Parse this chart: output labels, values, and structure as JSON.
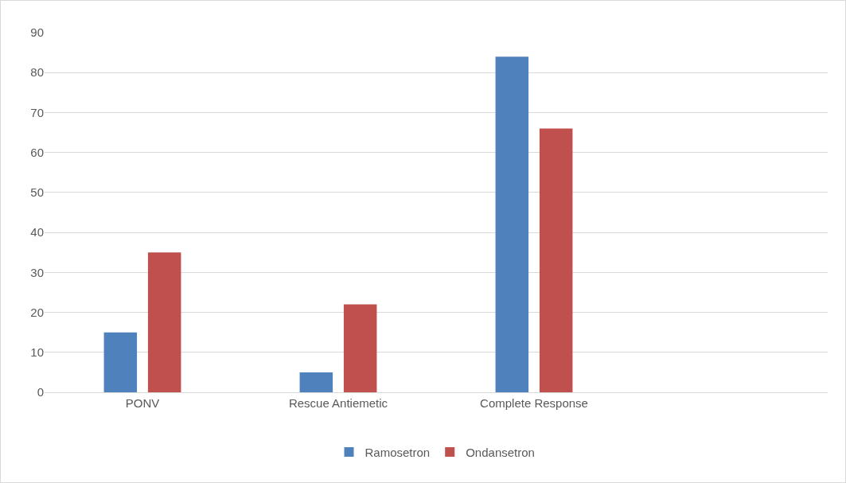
{
  "chart_data": {
    "type": "bar",
    "categories": [
      "PONV",
      "Rescue Antiemetic",
      "Complete Response",
      null
    ],
    "series": [
      {
        "name": "Ramosetron",
        "color": "#4f81bd",
        "values": [
          15,
          5,
          84,
          null
        ]
      },
      {
        "name": "Ondansetron",
        "color": "#c0504d",
        "values": [
          35,
          22,
          66,
          null
        ]
      }
    ],
    "ylim": [
      0,
      90
    ],
    "yticks": [
      0,
      10,
      20,
      30,
      40,
      50,
      60,
      70,
      80,
      90
    ],
    "grid": "y",
    "legend": "bottom"
  }
}
